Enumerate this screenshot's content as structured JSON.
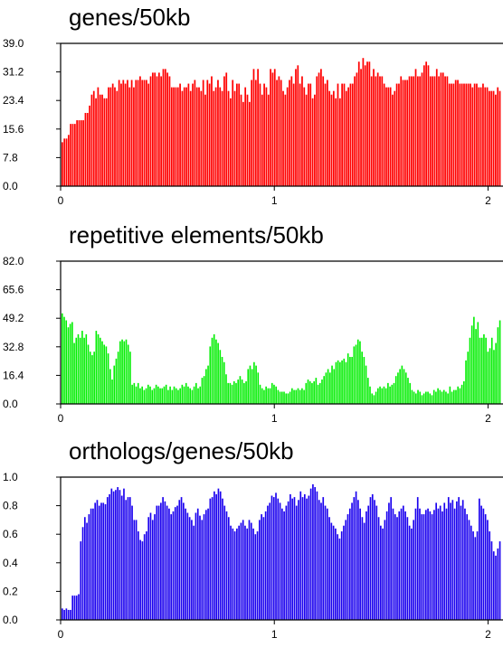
{
  "chart_data": [
    {
      "type": "bar",
      "title": "genes/50kb",
      "color": "#ff0000",
      "ylim": [
        0,
        39.0
      ],
      "yticks": [
        "0.0",
        "7.8",
        "15.6",
        "23.4",
        "31.2",
        "39.0"
      ],
      "xlim": [
        0,
        2.07
      ],
      "xticks": [
        "0",
        "1",
        "2"
      ],
      "values": [
        12,
        13,
        13,
        14,
        17,
        17,
        17,
        18,
        18,
        18,
        18,
        20,
        20,
        22,
        25,
        26,
        24,
        27,
        25,
        25,
        24,
        24,
        27,
        27,
        28,
        27,
        26,
        29,
        28,
        29,
        28,
        29,
        27,
        29,
        27,
        29,
        29,
        30,
        29,
        29,
        29,
        28,
        30,
        31,
        31,
        30,
        31,
        30,
        32,
        32,
        31,
        30,
        27,
        27,
        27,
        27,
        28,
        26,
        27,
        27,
        28,
        26,
        28,
        29,
        27,
        27,
        26,
        29,
        25,
        29,
        28,
        30,
        26,
        27,
        29,
        27,
        26,
        30,
        31,
        26,
        24,
        29,
        26,
        28,
        28,
        25,
        23,
        27,
        25,
        23,
        29,
        32,
        29,
        32,
        28,
        25,
        28,
        27,
        25,
        32,
        31,
        32,
        29,
        30,
        29,
        26,
        25,
        27,
        29,
        30,
        28,
        32,
        33,
        28,
        30,
        27,
        25,
        28,
        28,
        24,
        25,
        30,
        31,
        32,
        30,
        28,
        29,
        26,
        25,
        26,
        24,
        28,
        24,
        28,
        28,
        26,
        27,
        28,
        28,
        30,
        31,
        34,
        32,
        35,
        33,
        34,
        34,
        30,
        32,
        30,
        31,
        30,
        30,
        28,
        27,
        27,
        27,
        25,
        26,
        28,
        28,
        30,
        29,
        29,
        29,
        30,
        30,
        30,
        32,
        30,
        30,
        31,
        33,
        34,
        33,
        30,
        30,
        30,
        32,
        30,
        31,
        31,
        30,
        30,
        28,
        28,
        28,
        29,
        29,
        28,
        28,
        28,
        28,
        28,
        28,
        27,
        28,
        28,
        27,
        27,
        28,
        27,
        27,
        26,
        26,
        26,
        25,
        27,
        26
      ]
    },
    {
      "type": "bar",
      "title": "repetitive elements/50kb",
      "color": "#00ee00",
      "ylim": [
        0,
        82.0
      ],
      "yticks": [
        "0.0",
        "16.4",
        "32.8",
        "49.2",
        "65.6",
        "82.0"
      ],
      "xlim": [
        0,
        2.07
      ],
      "xticks": [
        "0",
        "1",
        "2"
      ],
      "values": [
        52,
        50,
        48,
        44,
        46,
        47,
        35,
        38,
        40,
        38,
        42,
        38,
        40,
        34,
        30,
        28,
        30,
        42,
        40,
        38,
        36,
        34,
        33,
        29,
        20,
        14,
        22,
        26,
        30,
        36,
        37,
        36,
        37,
        34,
        30,
        11,
        12,
        10,
        12,
        9,
        10,
        8,
        9,
        11,
        10,
        8,
        9,
        11,
        10,
        9,
        9,
        10,
        11,
        8,
        10,
        8,
        10,
        9,
        8,
        9,
        11,
        10,
        12,
        10,
        9,
        8,
        10,
        12,
        9,
        10,
        15,
        16,
        20,
        22,
        33,
        38,
        40,
        37,
        35,
        31,
        27,
        24,
        17,
        12,
        12,
        11,
        13,
        12,
        14,
        16,
        14,
        12,
        13,
        20,
        22,
        20,
        24,
        22,
        18,
        11,
        9,
        8,
        10,
        9,
        9,
        12,
        11,
        10,
        8,
        7,
        7,
        7,
        6,
        6,
        7,
        9,
        8,
        8,
        9,
        8,
        9,
        8,
        12,
        14,
        13,
        12,
        13,
        15,
        11,
        12,
        14,
        16,
        18,
        20,
        18,
        22,
        20,
        24,
        25,
        24,
        25,
        26,
        24,
        29,
        27,
        27,
        33,
        34,
        37,
        36,
        30,
        27,
        22,
        15,
        10,
        6,
        5,
        7,
        9,
        10,
        9,
        10,
        9,
        12,
        10,
        11,
        12,
        16,
        18,
        20,
        22,
        20,
        18,
        15,
        12,
        8,
        7,
        6,
        8,
        7,
        5,
        6,
        7,
        7,
        6,
        5,
        8,
        7,
        9,
        8,
        7,
        8,
        7,
        6,
        10,
        7,
        8,
        8,
        10,
        9,
        11,
        13,
        25,
        30,
        38,
        45,
        50,
        43,
        47,
        38,
        38,
        40,
        38,
        30,
        32,
        38,
        31,
        35,
        44,
        48
      ]
    },
    {
      "type": "bar",
      "title": "orthologs/genes/50kb",
      "color": "#1a00ee",
      "ylim": [
        0,
        1.0
      ],
      "yticks": [
        "0.0",
        "0.2",
        "0.4",
        "0.6",
        "0.8",
        "1.0"
      ],
      "xlim": [
        0,
        2.07
      ],
      "xticks": [
        "0",
        "1",
        "2"
      ],
      "values": [
        0.08,
        0.07,
        0.08,
        0.07,
        0.07,
        0.17,
        0.17,
        0.17,
        0.18,
        0.55,
        0.65,
        0.72,
        0.68,
        0.74,
        0.78,
        0.78,
        0.82,
        0.84,
        0.8,
        0.82,
        0.82,
        0.81,
        0.86,
        0.88,
        0.92,
        0.9,
        0.91,
        0.93,
        0.91,
        0.87,
        0.92,
        0.84,
        0.86,
        0.86,
        0.8,
        0.7,
        0.7,
        0.62,
        0.56,
        0.55,
        0.6,
        0.62,
        0.72,
        0.75,
        0.7,
        0.74,
        0.8,
        0.8,
        0.82,
        0.86,
        0.83,
        0.8,
        0.78,
        0.74,
        0.76,
        0.79,
        0.8,
        0.84,
        0.86,
        0.82,
        0.78,
        0.75,
        0.72,
        0.7,
        0.66,
        0.75,
        0.78,
        0.73,
        0.7,
        0.74,
        0.77,
        0.78,
        0.85,
        0.86,
        0.9,
        0.88,
        0.92,
        0.9,
        0.85,
        0.8,
        0.76,
        0.72,
        0.66,
        0.64,
        0.62,
        0.64,
        0.66,
        0.68,
        0.7,
        0.66,
        0.64,
        0.7,
        0.68,
        0.64,
        0.6,
        0.62,
        0.7,
        0.74,
        0.72,
        0.76,
        0.8,
        0.82,
        0.87,
        0.86,
        0.89,
        0.85,
        0.82,
        0.78,
        0.76,
        0.8,
        0.83,
        0.88,
        0.85,
        0.86,
        0.8,
        0.84,
        0.9,
        0.86,
        0.88,
        0.85,
        0.87,
        0.92,
        0.95,
        0.93,
        0.9,
        0.84,
        0.82,
        0.86,
        0.8,
        0.78,
        0.72,
        0.68,
        0.66,
        0.64,
        0.6,
        0.57,
        0.62,
        0.66,
        0.7,
        0.74,
        0.78,
        0.82,
        0.86,
        0.9,
        0.84,
        0.78,
        0.72,
        0.68,
        0.76,
        0.8,
        0.86,
        0.88,
        0.84,
        0.8,
        0.72,
        0.66,
        0.64,
        0.7,
        0.76,
        0.82,
        0.86,
        0.78,
        0.74,
        0.72,
        0.76,
        0.78,
        0.8,
        0.76,
        0.72,
        0.66,
        0.64,
        0.7,
        0.78,
        0.86,
        0.78,
        0.74,
        0.74,
        0.77,
        0.78,
        0.76,
        0.74,
        0.77,
        0.82,
        0.78,
        0.8,
        0.76,
        0.82,
        0.78,
        0.86,
        0.82,
        0.84,
        0.78,
        0.83,
        0.86,
        0.8,
        0.84,
        0.78,
        0.74,
        0.7,
        0.66,
        0.62,
        0.58,
        0.62,
        0.85,
        0.8,
        0.78,
        0.74,
        0.7,
        0.62,
        0.55,
        0.48,
        0.45,
        0.5,
        0.55
      ]
    }
  ]
}
